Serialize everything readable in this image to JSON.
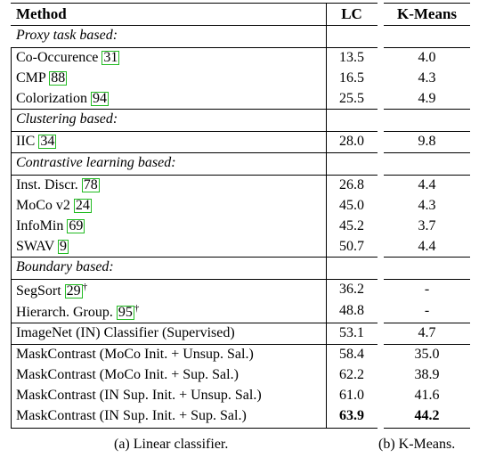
{
  "header": {
    "method": "Method",
    "lc": "LC",
    "km": "K-Means"
  },
  "sections": {
    "proxy": "Proxy task based:",
    "clustering": "Clustering based:",
    "contrastive": "Contrastive learning based:",
    "boundary": "Boundary based:"
  },
  "rows": [
    {
      "name": "Co-Occurence",
      "cite": "31",
      "dagger": "",
      "lc": "13.5",
      "km": "4.0"
    },
    {
      "name": "CMP",
      "cite": "88",
      "dagger": "",
      "lc": "16.5",
      "km": "4.3"
    },
    {
      "name": "Colorization",
      "cite": "94",
      "dagger": "",
      "lc": "25.5",
      "km": "4.9"
    },
    {
      "name": "IIC",
      "cite": "34",
      "dagger": "",
      "lc": "28.0",
      "km": "9.8"
    },
    {
      "name": "Inst. Discr.",
      "cite": "78",
      "dagger": "",
      "lc": "26.8",
      "km": "4.4"
    },
    {
      "name": "MoCo v2",
      "cite": "24",
      "dagger": "",
      "lc": "45.0",
      "km": "4.3"
    },
    {
      "name": "InfoMin",
      "cite": "69",
      "dagger": "",
      "lc": "45.2",
      "km": "3.7"
    },
    {
      "name": "SWAV",
      "cite": "9",
      "dagger": "",
      "lc": "50.7",
      "km": "4.4"
    },
    {
      "name": "SegSort",
      "cite": "29",
      "dagger": "†",
      "lc": "36.2",
      "km": "-"
    },
    {
      "name": "Hierarch. Group.",
      "cite": "95",
      "dagger": "†",
      "lc": "48.8",
      "km": "-"
    },
    {
      "name": "ImageNet (IN) Classifier (Supervised)",
      "cite": "",
      "dagger": "",
      "lc": "53.1",
      "km": "4.7"
    },
    {
      "name": "MaskContrast (MoCo Init. + Unsup. Sal.)",
      "cite": "",
      "dagger": "",
      "lc": "58.4",
      "km": "35.0"
    },
    {
      "name": "MaskContrast (MoCo Init. + Sup. Sal.)",
      "cite": "",
      "dagger": "",
      "lc": "62.2",
      "km": "38.9"
    },
    {
      "name": "MaskContrast (IN Sup. Init. + Unsup. Sal.)",
      "cite": "",
      "dagger": "",
      "lc": "61.0",
      "km": "41.6"
    },
    {
      "name": "MaskContrast (IN Sup. Init. + Sup. Sal.)",
      "cite": "",
      "dagger": "",
      "lc": "63.9",
      "km": "44.2"
    }
  ],
  "captions": {
    "a": "(a) Linear classifier.",
    "b": "(b) K-Means."
  }
}
